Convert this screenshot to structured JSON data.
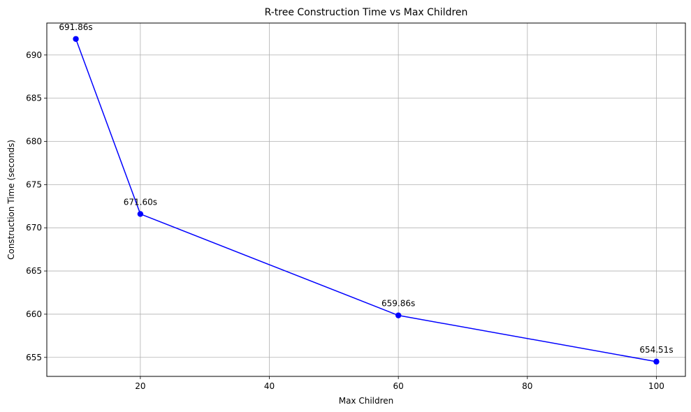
{
  "chart_data": {
    "type": "line",
    "title": "R-tree Construction Time vs Max Children",
    "xlabel": "Max Children",
    "ylabel": "Construction Time (seconds)",
    "x": [
      10,
      20,
      60,
      100
    ],
    "series": [
      {
        "values": [
          691.86,
          671.6,
          659.86,
          654.51
        ],
        "point_labels": [
          "691.86s",
          "671.60s",
          "659.86s",
          "654.51s"
        ],
        "color": "#0000ff",
        "marker": "circle"
      }
    ],
    "xlim": [
      5.5,
      104.5
    ],
    "ylim": [
      652.8,
      693.7
    ],
    "xticks": [
      20,
      40,
      60,
      80,
      100
    ],
    "xtick_labels": [
      "20",
      "40",
      "60",
      "80",
      "100"
    ],
    "yticks": [
      655,
      660,
      665,
      670,
      675,
      680,
      685,
      690
    ],
    "ytick_labels": [
      "655",
      "660",
      "665",
      "670",
      "675",
      "680",
      "685",
      "690"
    ],
    "grid": true,
    "grid_color": "#b0b0b0"
  }
}
